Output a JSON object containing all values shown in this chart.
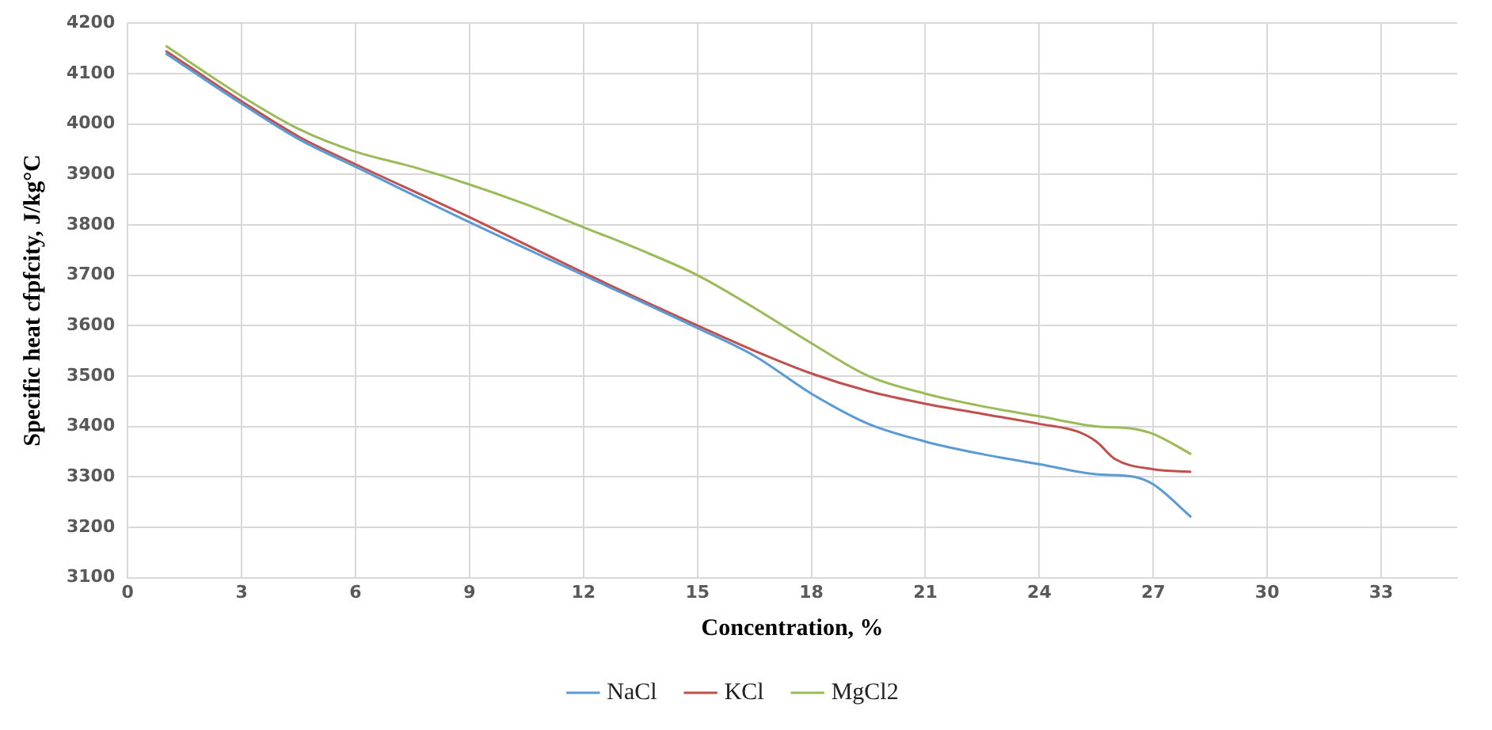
{
  "chart_data": {
    "type": "line",
    "xlabel": "Concentration, %",
    "ylabel": "Specific heat cfpfcity, J/kg°C",
    "xlim": [
      0,
      35
    ],
    "xticks": [
      0,
      3,
      6,
      9,
      12,
      15,
      18,
      21,
      24,
      27,
      30,
      33
    ],
    "ylim": [
      3100,
      4200
    ],
    "yticks": [
      3100,
      3200,
      3300,
      3400,
      3500,
      3600,
      3700,
      3800,
      3900,
      4000,
      4100,
      4200
    ],
    "grid": true,
    "legend": "bottom",
    "marker": "none",
    "line_style": "solid",
    "series": [
      {
        "name": "NaCl",
        "color": "#5b9bd5",
        "x": [
          1,
          3,
          4.5,
          6,
          9,
          12,
          15,
          16.5,
          18,
          19.5,
          21,
          22.5,
          24,
          25.5,
          26.5,
          27,
          28
        ],
        "values": [
          4140,
          4040,
          3970,
          3915,
          3805,
          3700,
          3595,
          3540,
          3465,
          3405,
          3370,
          3345,
          3325,
          3305,
          3300,
          3285,
          3220
        ]
      },
      {
        "name": "KCl",
        "color": "#c0504d",
        "x": [
          1,
          3,
          4.5,
          6,
          9,
          12,
          15,
          16.5,
          18,
          19.5,
          21,
          22.5,
          24,
          25,
          25.5,
          26,
          27,
          28
        ],
        "values": [
          4145,
          4045,
          3975,
          3920,
          3815,
          3705,
          3600,
          3550,
          3505,
          3470,
          3445,
          3425,
          3405,
          3390,
          3370,
          3335,
          3315,
          3310
        ]
      },
      {
        "name": "MgCl2",
        "color": "#9bbb59",
        "x": [
          1,
          3,
          4.5,
          6,
          7.5,
          9,
          10.5,
          12,
          13.5,
          15,
          16.5,
          18,
          19.5,
          21,
          22.5,
          24,
          25.5,
          26.5,
          27,
          28
        ],
        "values": [
          4155,
          4055,
          3990,
          3945,
          3915,
          3880,
          3840,
          3795,
          3750,
          3700,
          3635,
          3565,
          3500,
          3465,
          3440,
          3420,
          3400,
          3395,
          3385,
          3345
        ]
      }
    ]
  }
}
